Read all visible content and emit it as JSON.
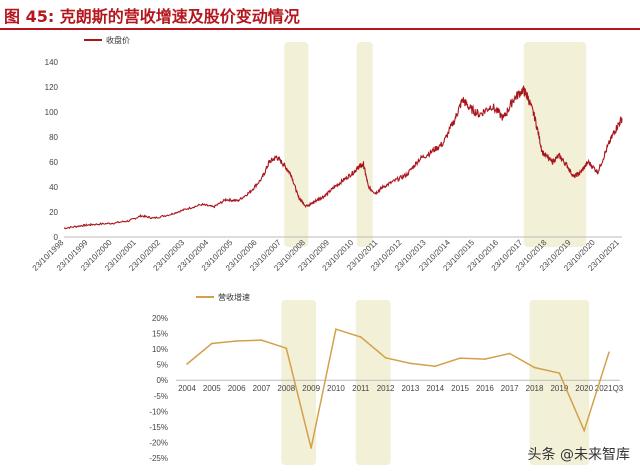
{
  "header": {
    "title": "图 45:  克朗斯的营收增速及股价变动情况"
  },
  "watermark": "头条 @未来智库",
  "colors": {
    "price": "#a8151c",
    "growth": "#d4a04a",
    "shade": "#f3f0d8",
    "title": "#b5171f"
  },
  "chart_data": [
    {
      "type": "line",
      "title": "",
      "legend": [
        "收盘价"
      ],
      "legend_position": "top-left",
      "ylim": [
        0,
        140
      ],
      "yticks": [
        0,
        20,
        40,
        60,
        80,
        100,
        120,
        140
      ],
      "xtick_labels": [
        "23/10/1998",
        "23/10/1999",
        "23/10/2000",
        "23/10/2001",
        "23/10/2002",
        "23/10/2003",
        "23/10/2004",
        "23/10/2005",
        "23/10/2006",
        "23/10/2007",
        "23/10/2008",
        "23/10/2009",
        "23/10/2010",
        "23/10/2011",
        "23/10/2012",
        "23/10/2013",
        "23/10/2014",
        "23/10/2015",
        "23/10/2016",
        "23/10/2017",
        "23/10/2018",
        "23/10/2019",
        "23/10/2020",
        "23/10/2021"
      ],
      "grid": false,
      "shaded_periods": [
        [
          "2007-12",
          "2008-12"
        ],
        [
          "2010-12",
          "2011-08"
        ],
        [
          "2017-11",
          "2020-06"
        ]
      ],
      "series": [
        {
          "name": "收盘价",
          "x": [
            1998.8,
            1999.5,
            2000.0,
            2000.8,
            2001.5,
            2002.0,
            2002.5,
            2003.2,
            2003.8,
            2004.5,
            2005.0,
            2005.5,
            2006.0,
            2006.5,
            2007.0,
            2007.3,
            2007.6,
            2007.9,
            2008.2,
            2008.5,
            2008.8,
            2009.0,
            2009.3,
            2009.6,
            2010.0,
            2010.4,
            2010.8,
            2011.0,
            2011.2,
            2011.4,
            2011.7,
            2012.0,
            2012.5,
            2013.0,
            2013.5,
            2014.0,
            2014.5,
            2015.0,
            2015.3,
            2015.6,
            2016.0,
            2016.5,
            2017.0,
            2017.4,
            2017.8,
            2018.0,
            2018.3,
            2018.6,
            2019.0,
            2019.3,
            2019.6,
            2019.9,
            2020.2,
            2020.5,
            2020.9,
            2021.3,
            2021.6,
            2021.9
          ],
          "values": [
            7,
            9,
            10,
            11,
            13,
            17,
            15,
            18,
            22,
            26,
            24,
            30,
            29,
            36,
            47,
            60,
            64,
            58,
            50,
            32,
            25,
            26,
            30,
            33,
            40,
            46,
            52,
            56,
            58,
            40,
            35,
            40,
            45,
            50,
            62,
            68,
            75,
            95,
            110,
            103,
            98,
            105,
            95,
            110,
            118,
            112,
            95,
            68,
            60,
            65,
            58,
            48,
            52,
            60,
            52,
            72,
            85,
            95
          ]
        }
      ]
    },
    {
      "type": "line",
      "title": "",
      "legend": [
        "营收增速"
      ],
      "legend_position": "top-left",
      "ylim": [
        -25,
        20
      ],
      "yticks": [
        "20%",
        "15%",
        "10%",
        "5%",
        "0%",
        "-5%",
        "-10%",
        "-15%",
        "-20%",
        "-25%"
      ],
      "categories": [
        "2004",
        "2005",
        "2006",
        "2007",
        "2008",
        "2009",
        "2010",
        "2011",
        "2012",
        "2013",
        "2014",
        "2015",
        "2016",
        "2017",
        "2018",
        "2019",
        "2020",
        "2021Q3"
      ],
      "shaded_categories": [
        [
          "2008",
          "2009"
        ],
        [
          "2011",
          "2012"
        ],
        [
          "2018",
          "2020"
        ]
      ],
      "grid": false,
      "series": [
        {
          "name": "营收增速",
          "values": [
            5.2,
            11.8,
            12.6,
            12.9,
            10.3,
            -21.8,
            16.4,
            13.9,
            7.2,
            5.4,
            4.5,
            7.1,
            6.8,
            8.6,
            4.1,
            2.3,
            -16.2,
            9.0
          ]
        }
      ]
    }
  ]
}
